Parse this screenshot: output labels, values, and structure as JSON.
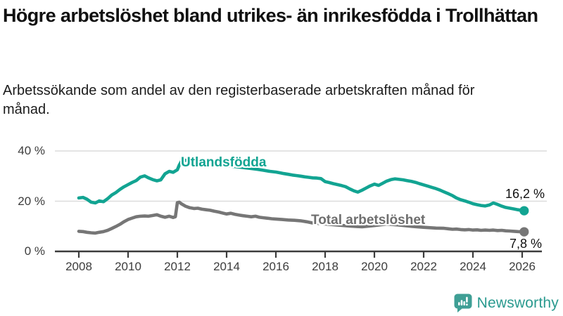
{
  "header": {
    "title": "Högre arbetslöshet bland utrikes- än inrikesfödda i Trollhättan",
    "subtitle": "Arbetssökande som andel av den registerbaserade arbetskraften månad för månad."
  },
  "footer": {
    "brand": "Newsworthy",
    "brand_color": "#2a9a8f",
    "logo_icon": "bar-chart-speech-bubble-icon"
  },
  "chart_data": {
    "type": "line",
    "title": "Högre arbetslöshet bland utrikes- än inrikesfödda i Trollhättan",
    "subtitle": "Arbetssökande som andel av den registerbaserade arbetskraften månad för månad.",
    "xlabel": "",
    "ylabel": "",
    "xlim": [
      2007.7,
      2026.4
    ],
    "ylim": [
      0,
      40
    ],
    "grid": "horizontal",
    "legend": "inline-labels",
    "colors": {
      "accent_teal": "#12a492",
      "line_gray": "#767676",
      "gridline": "#dcdcdc",
      "axis": "#3c3c3c",
      "tick_text": "#3d3d3d"
    },
    "y_ticks": [
      {
        "value": 0,
        "label": "0 %"
      },
      {
        "value": 20,
        "label": "20 %"
      },
      {
        "value": 40,
        "label": "40 %"
      }
    ],
    "x_ticks": [
      {
        "value": 2008,
        "label": "2008"
      },
      {
        "value": 2010,
        "label": "2010"
      },
      {
        "value": 2012,
        "label": "2012"
      },
      {
        "value": 2014,
        "label": "2014"
      },
      {
        "value": 2016,
        "label": "2016"
      },
      {
        "value": 2018,
        "label": "2018"
      },
      {
        "value": 2020,
        "label": "2020"
      },
      {
        "value": 2022,
        "label": "2022"
      },
      {
        "value": 2024,
        "label": "2024"
      },
      {
        "value": 2026,
        "label": "2026"
      }
    ],
    "series": [
      {
        "name": "Utlandsfödda",
        "color": "#12a492",
        "end_value": 16.2,
        "end_label": "16,2 %",
        "points": [
          [
            2008.0,
            21.3
          ],
          [
            2008.17,
            21.5
          ],
          [
            2008.33,
            20.8
          ],
          [
            2008.5,
            19.6
          ],
          [
            2008.67,
            19.3
          ],
          [
            2008.83,
            20.1
          ],
          [
            2009.0,
            19.8
          ],
          [
            2009.17,
            21.0
          ],
          [
            2009.33,
            22.4
          ],
          [
            2009.5,
            23.4
          ],
          [
            2009.67,
            24.7
          ],
          [
            2009.83,
            25.7
          ],
          [
            2010.0,
            26.6
          ],
          [
            2010.17,
            27.5
          ],
          [
            2010.33,
            28.2
          ],
          [
            2010.5,
            29.6
          ],
          [
            2010.67,
            30.1
          ],
          [
            2010.83,
            29.3
          ],
          [
            2011.0,
            28.6
          ],
          [
            2011.17,
            28.1
          ],
          [
            2011.33,
            28.5
          ],
          [
            2011.5,
            30.9
          ],
          [
            2011.67,
            31.9
          ],
          [
            2011.83,
            31.5
          ],
          [
            2012.0,
            32.5
          ],
          [
            2012.08,
            34.4
          ],
          [
            2012.17,
            36.0
          ],
          [
            2012.33,
            36.3
          ],
          [
            2012.5,
            36.0
          ],
          [
            2012.75,
            35.6
          ],
          [
            2013.0,
            35.3
          ],
          [
            2013.25,
            35.0
          ],
          [
            2013.5,
            34.7
          ],
          [
            2013.75,
            34.4
          ],
          [
            2014.0,
            34.1
          ],
          [
            2014.25,
            33.9
          ],
          [
            2014.5,
            33.6
          ],
          [
            2014.75,
            33.3
          ],
          [
            2015.0,
            33.0
          ],
          [
            2015.25,
            32.7
          ],
          [
            2015.5,
            32.3
          ],
          [
            2015.75,
            31.9
          ],
          [
            2016.0,
            31.6
          ],
          [
            2016.17,
            31.3
          ],
          [
            2016.33,
            31.0
          ],
          [
            2016.5,
            30.7
          ],
          [
            2016.67,
            30.4
          ],
          [
            2016.83,
            30.2
          ],
          [
            2017.0,
            30.0
          ],
          [
            2017.17,
            29.7
          ],
          [
            2017.33,
            29.5
          ],
          [
            2017.5,
            29.3
          ],
          [
            2017.67,
            29.2
          ],
          [
            2017.83,
            29.0
          ],
          [
            2018.0,
            27.8
          ],
          [
            2018.17,
            27.4
          ],
          [
            2018.33,
            27.0
          ],
          [
            2018.5,
            26.6
          ],
          [
            2018.67,
            26.2
          ],
          [
            2018.83,
            25.8
          ],
          [
            2019.0,
            24.9
          ],
          [
            2019.17,
            24.1
          ],
          [
            2019.33,
            23.6
          ],
          [
            2019.5,
            24.4
          ],
          [
            2019.67,
            25.3
          ],
          [
            2019.83,
            26.1
          ],
          [
            2020.0,
            26.8
          ],
          [
            2020.17,
            26.3
          ],
          [
            2020.33,
            27.1
          ],
          [
            2020.5,
            28.0
          ],
          [
            2020.67,
            28.6
          ],
          [
            2020.83,
            28.9
          ],
          [
            2021.0,
            28.7
          ],
          [
            2021.17,
            28.5
          ],
          [
            2021.33,
            28.2
          ],
          [
            2021.5,
            27.9
          ],
          [
            2021.67,
            27.5
          ],
          [
            2021.83,
            27.0
          ],
          [
            2022.0,
            26.5
          ],
          [
            2022.17,
            26.0
          ],
          [
            2022.33,
            25.5
          ],
          [
            2022.5,
            25.0
          ],
          [
            2022.67,
            24.4
          ],
          [
            2022.83,
            23.7
          ],
          [
            2023.0,
            23.0
          ],
          [
            2023.17,
            22.2
          ],
          [
            2023.33,
            21.3
          ],
          [
            2023.5,
            20.6
          ],
          [
            2023.67,
            20.1
          ],
          [
            2023.83,
            19.6
          ],
          [
            2024.0,
            19.0
          ],
          [
            2024.17,
            18.6
          ],
          [
            2024.33,
            18.3
          ],
          [
            2024.5,
            18.1
          ],
          [
            2024.67,
            18.5
          ],
          [
            2024.83,
            19.3
          ],
          [
            2025.0,
            18.7
          ],
          [
            2025.17,
            18.0
          ],
          [
            2025.33,
            17.5
          ],
          [
            2025.5,
            17.2
          ],
          [
            2025.67,
            16.9
          ],
          [
            2025.83,
            16.6
          ],
          [
            2026.0,
            16.3
          ],
          [
            2026.08,
            16.2
          ]
        ]
      },
      {
        "name": "Total arbetslöshet",
        "color": "#767676",
        "end_value": 7.8,
        "end_label": "7,8 %",
        "points": [
          [
            2008.0,
            8.0
          ],
          [
            2008.17,
            7.9
          ],
          [
            2008.33,
            7.6
          ],
          [
            2008.5,
            7.4
          ],
          [
            2008.67,
            7.3
          ],
          [
            2008.83,
            7.6
          ],
          [
            2009.0,
            7.9
          ],
          [
            2009.17,
            8.4
          ],
          [
            2009.33,
            9.1
          ],
          [
            2009.5,
            9.9
          ],
          [
            2009.67,
            10.8
          ],
          [
            2009.83,
            11.8
          ],
          [
            2010.0,
            12.7
          ],
          [
            2010.17,
            13.3
          ],
          [
            2010.33,
            13.8
          ],
          [
            2010.5,
            14.0
          ],
          [
            2010.67,
            14.1
          ],
          [
            2010.83,
            14.0
          ],
          [
            2011.0,
            14.3
          ],
          [
            2011.17,
            14.6
          ],
          [
            2011.33,
            14.0
          ],
          [
            2011.5,
            13.6
          ],
          [
            2011.67,
            14.0
          ],
          [
            2011.83,
            13.5
          ],
          [
            2011.92,
            13.8
          ],
          [
            2012.0,
            19.4
          ],
          [
            2012.08,
            19.6
          ],
          [
            2012.17,
            18.9
          ],
          [
            2012.33,
            18.0
          ],
          [
            2012.5,
            17.4
          ],
          [
            2012.67,
            17.1
          ],
          [
            2012.83,
            17.2
          ],
          [
            2013.0,
            16.8
          ],
          [
            2013.17,
            16.6
          ],
          [
            2013.33,
            16.4
          ],
          [
            2013.5,
            16.0
          ],
          [
            2013.67,
            15.7
          ],
          [
            2013.83,
            15.3
          ],
          [
            2014.0,
            14.9
          ],
          [
            2014.17,
            15.2
          ],
          [
            2014.33,
            14.8
          ],
          [
            2014.5,
            14.5
          ],
          [
            2014.67,
            14.2
          ],
          [
            2014.83,
            14.0
          ],
          [
            2015.0,
            13.8
          ],
          [
            2015.17,
            14.0
          ],
          [
            2015.33,
            13.6
          ],
          [
            2015.5,
            13.4
          ],
          [
            2015.67,
            13.2
          ],
          [
            2015.83,
            13.0
          ],
          [
            2016.0,
            12.9
          ],
          [
            2016.25,
            12.7
          ],
          [
            2016.5,
            12.5
          ],
          [
            2016.75,
            12.4
          ],
          [
            2017.0,
            12.2
          ],
          [
            2017.25,
            11.8
          ],
          [
            2017.5,
            11.3
          ],
          [
            2017.75,
            11.1
          ],
          [
            2018.0,
            10.9
          ],
          [
            2018.5,
            10.5
          ],
          [
            2019.0,
            10.1
          ],
          [
            2019.5,
            9.8
          ],
          [
            2020.0,
            10.3
          ],
          [
            2020.5,
            10.9
          ],
          [
            2021.0,
            10.5
          ],
          [
            2021.5,
            10.0
          ],
          [
            2022.0,
            9.6
          ],
          [
            2022.5,
            9.3
          ],
          [
            2022.83,
            9.2
          ],
          [
            2023.0,
            9.0
          ],
          [
            2023.17,
            8.8
          ],
          [
            2023.33,
            8.9
          ],
          [
            2023.5,
            8.7
          ],
          [
            2023.67,
            8.6
          ],
          [
            2023.83,
            8.7
          ],
          [
            2024.0,
            8.5
          ],
          [
            2024.17,
            8.6
          ],
          [
            2024.33,
            8.4
          ],
          [
            2024.5,
            8.5
          ],
          [
            2024.67,
            8.4
          ],
          [
            2024.83,
            8.5
          ],
          [
            2025.0,
            8.3
          ],
          [
            2025.17,
            8.4
          ],
          [
            2025.33,
            8.2
          ],
          [
            2025.5,
            8.1
          ],
          [
            2025.67,
            8.0
          ],
          [
            2025.83,
            7.9
          ],
          [
            2026.0,
            7.8
          ],
          [
            2026.08,
            7.8
          ]
        ]
      }
    ]
  }
}
